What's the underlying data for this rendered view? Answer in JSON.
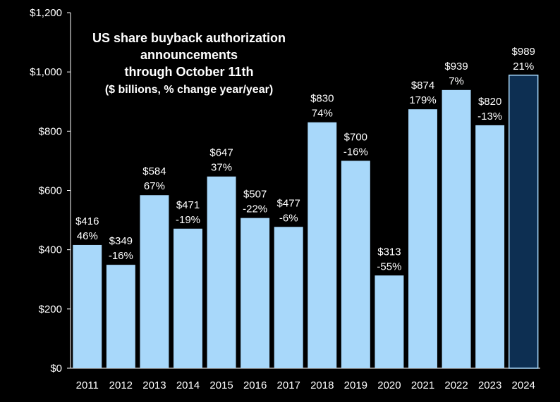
{
  "chart_data": {
    "type": "bar",
    "title_lines": [
      "US share buyback authorization",
      "announcements",
      "through October 11th",
      "($ billions, % change year/year)"
    ],
    "xlabel": "",
    "ylabel": "",
    "categories": [
      "2011",
      "2012",
      "2013",
      "2014",
      "2015",
      "2016",
      "2017",
      "2018",
      "2019",
      "2020",
      "2021",
      "2022",
      "2023",
      "2024"
    ],
    "values": [
      416,
      349,
      584,
      471,
      647,
      507,
      477,
      830,
      700,
      313,
      874,
      939,
      820,
      989
    ],
    "value_labels": [
      "$416",
      "$349",
      "$584",
      "$471",
      "$647",
      "$507",
      "$477",
      "$830",
      "$700",
      "$313",
      "$874",
      "$939",
      "$820",
      "$989"
    ],
    "pct_labels": [
      "46%",
      "-16%",
      "67%",
      "-19%",
      "37%",
      "-22%",
      "-6%",
      "74%",
      "-16%",
      "-55%",
      "179%",
      "7%",
      "-13%",
      "21%"
    ],
    "ylim": [
      0,
      1200
    ],
    "yticks": [
      0,
      200,
      400,
      600,
      800,
      1000,
      1200
    ],
    "ytick_labels": [
      "$0",
      "$200",
      "$400",
      "$600",
      "$800",
      "$1,000",
      "$1,200"
    ],
    "grid": false,
    "legend": "none",
    "highlight_index": 13,
    "colors": {
      "background": "#000000",
      "bar": "#a8d8fa",
      "bar_highlight": "#0d2f52",
      "bar_highlight_stroke": "#a8d8fa",
      "axis": "#ffffff",
      "text": "#ffffff"
    }
  }
}
